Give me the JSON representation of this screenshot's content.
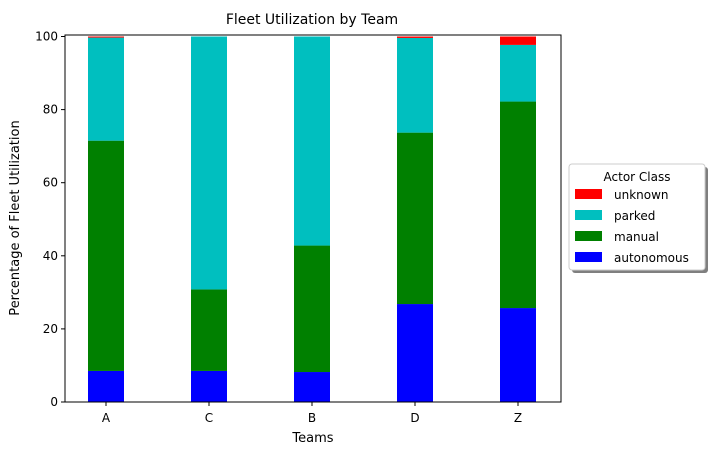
{
  "chart_data": {
    "type": "bar",
    "stacked": true,
    "title": "Fleet Utilization by Team",
    "xlabel": "Teams",
    "ylabel": "Percentage of Fleet Utilization",
    "categories": [
      "A",
      "C",
      "B",
      "D",
      "Z"
    ],
    "ylim": [
      0,
      100
    ],
    "yticks": [
      0,
      20,
      40,
      60,
      80,
      100
    ],
    "grid": false,
    "legend": {
      "title": "Actor Class",
      "placement": "center-right-outside"
    },
    "series": [
      {
        "name": "autonomous",
        "color": "#0000ff",
        "values": [
          8.5,
          8.5,
          8.2,
          26.8,
          25.7
        ]
      },
      {
        "name": "manual",
        "color": "#008000",
        "values": [
          63.0,
          22.3,
          34.6,
          46.9,
          56.5
        ]
      },
      {
        "name": "parked",
        "color": "#00bfbf",
        "values": [
          28.2,
          69.2,
          57.2,
          25.9,
          15.5
        ]
      },
      {
        "name": "unknown",
        "color": "#ff0000",
        "values": [
          0.3,
          0.0,
          0.0,
          0.4,
          2.3
        ]
      }
    ]
  }
}
